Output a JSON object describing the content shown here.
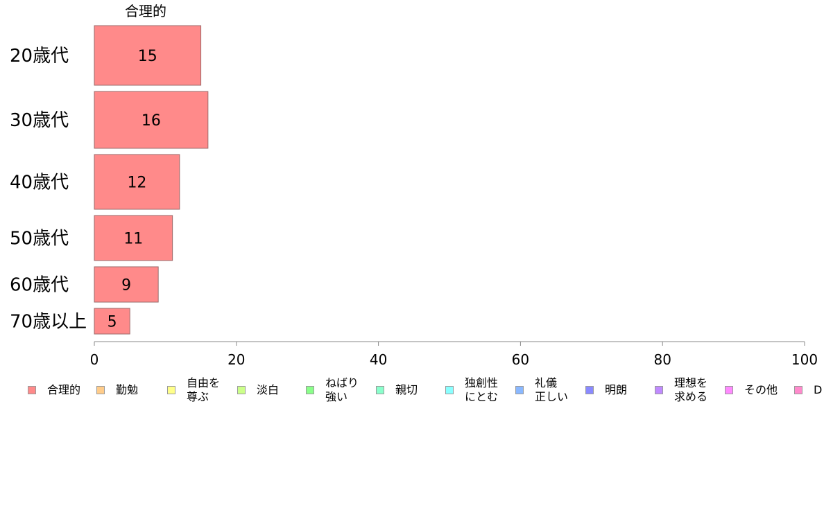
{
  "chart_data": {
    "type": "bar",
    "orientation": "horizontal",
    "series_title": "合理的",
    "categories": [
      "20歳代",
      "30歳代",
      "40歳代",
      "50歳代",
      "60歳代",
      "70歳以上"
    ],
    "values": [
      15,
      16,
      12,
      11,
      9,
      5
    ],
    "bar_color": "#ff8a8a",
    "bar_border": "#9a6a6a",
    "xlim": [
      0,
      100
    ],
    "x_ticks": [
      0,
      20,
      40,
      60,
      80,
      100
    ],
    "grid": false,
    "legend_position": "bottom",
    "legend": [
      {
        "label": "合理的",
        "color": "#ff8a8a"
      },
      {
        "label": "勤勉",
        "color": "#ffcc8a"
      },
      {
        "label": "自由を\n尊ぶ",
        "color": "#ffff8a"
      },
      {
        "label": "淡白",
        "color": "#ccff8a"
      },
      {
        "label": "ねばり\n強い",
        "color": "#8aff8a"
      },
      {
        "label": "親切",
        "color": "#8affcc"
      },
      {
        "label": "独創性\nにとむ",
        "color": "#8affff"
      },
      {
        "label": "礼儀\n正しい",
        "color": "#8ab8ff"
      },
      {
        "label": "明朗",
        "color": "#8a8aff"
      },
      {
        "label": "理想を\n求める",
        "color": "#c08aff"
      },
      {
        "label": "その他",
        "color": "#ff8aff"
      },
      {
        "label": "D",
        "color": "#ff8acc"
      }
    ]
  }
}
